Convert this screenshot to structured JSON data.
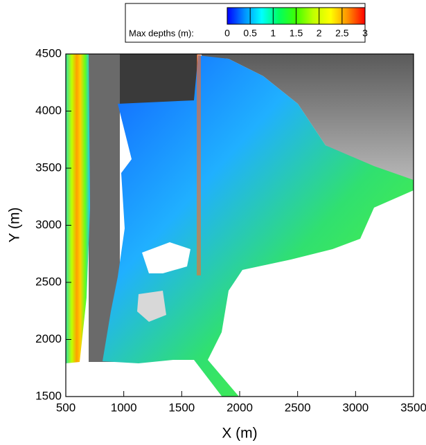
{
  "chart_data": {
    "type": "map",
    "x_label": "X (m)",
    "y_label": "Y (m)",
    "xlim": [
      500,
      3500
    ],
    "xticks": [
      500,
      1000,
      1500,
      2000,
      2500,
      3000,
      3500
    ],
    "ylim": [
      1500,
      4500
    ],
    "yticks": [
      1500,
      2000,
      2500,
      3000,
      3500,
      4000,
      4500
    ],
    "colorbar": {
      "label": "Max depths (m):",
      "lim": [
        0,
        3
      ],
      "ticks": [
        0,
        0.5,
        1,
        1.5,
        2,
        2.5,
        3
      ],
      "colors": [
        "#0000ff",
        "#0090ff",
        "#00ffff",
        "#00ff60",
        "#40ff00",
        "#c0ff00",
        "#ffff00",
        "#ff9000",
        "#ff0000"
      ]
    }
  }
}
